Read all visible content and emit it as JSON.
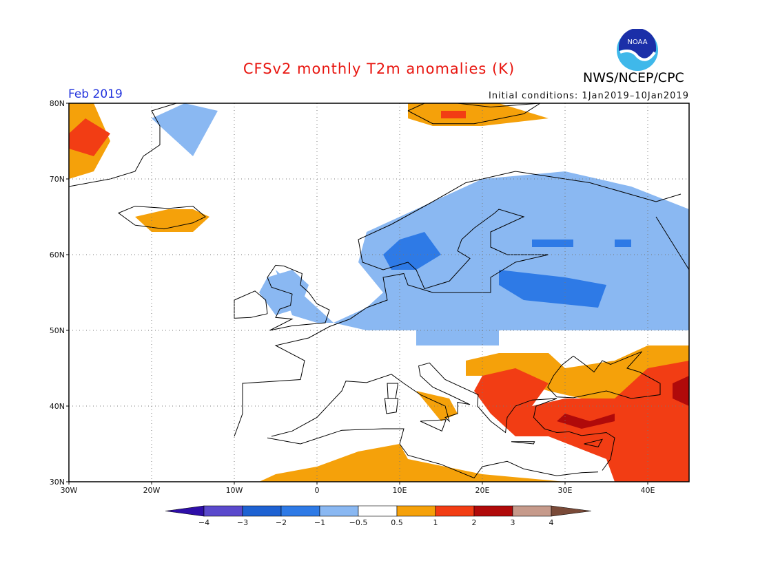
{
  "header": {
    "title": "CFSv2 monthly T2m anomalies (K)",
    "agency": "NWS/NCEP/CPC",
    "logo_text": "NOAA",
    "period": "Feb 2019",
    "initial_conditions": "Initial conditions: 1Jan2019–10Jan2019"
  },
  "map": {
    "lon_range": [
      -30,
      45
    ],
    "lat_range": [
      30,
      80
    ],
    "lon_labels": [
      {
        "lon": -30,
        "label": "30W"
      },
      {
        "lon": -20,
        "label": "20W"
      },
      {
        "lon": -10,
        "label": "10W"
      },
      {
        "lon": 0,
        "label": "0"
      },
      {
        "lon": 10,
        "label": "10E"
      },
      {
        "lon": 20,
        "label": "20E"
      },
      {
        "lon": 30,
        "label": "30E"
      },
      {
        "lon": 40,
        "label": "40E"
      }
    ],
    "lat_labels": [
      {
        "lat": 80,
        "label": "80N"
      },
      {
        "lat": 70,
        "label": "70N"
      },
      {
        "lat": 60,
        "label": "60N"
      },
      {
        "lat": 50,
        "label": "50N"
      },
      {
        "lat": 40,
        "label": "40N"
      },
      {
        "lat": 30,
        "label": "30N"
      }
    ],
    "grid": true,
    "anomaly_regions": [
      {
        "level": "minus_1_to_minus_0_5",
        "points": [
          [
            -5,
            58
          ],
          [
            -3,
            52
          ],
          [
            0,
            51
          ],
          [
            2,
            51
          ],
          [
            6,
            50
          ],
          [
            10,
            50
          ],
          [
            20,
            50
          ],
          [
            30,
            50
          ],
          [
            40,
            50
          ],
          [
            45,
            50
          ],
          [
            45,
            66
          ],
          [
            38,
            69
          ],
          [
            30,
            71
          ],
          [
            20,
            70
          ],
          [
            12,
            66
          ],
          [
            6,
            63
          ],
          [
            5,
            59
          ],
          [
            8,
            55
          ],
          [
            6,
            53
          ],
          [
            2,
            51
          ]
        ]
      },
      {
        "level": "minus_1_to_minus_0_5",
        "points": [
          [
            -6,
            57
          ],
          [
            -3,
            58
          ],
          [
            -1,
            56
          ],
          [
            -2,
            53
          ],
          [
            -5,
            52
          ],
          [
            -7,
            55
          ]
        ]
      },
      {
        "level": "minus_1_to_minus_0_5",
        "points": [
          [
            -20,
            78
          ],
          [
            -16,
            80
          ],
          [
            -12,
            79
          ],
          [
            -15,
            73
          ]
        ]
      },
      {
        "level": "minus_1_to_minus_0_5",
        "points": [
          [
            12,
            48
          ],
          [
            22,
            48
          ],
          [
            22,
            50
          ],
          [
            12,
            50
          ]
        ]
      },
      {
        "level": "minus_2_to_minus_1",
        "points": [
          [
            8,
            60
          ],
          [
            10,
            62
          ],
          [
            13,
            63
          ],
          [
            15,
            60
          ],
          [
            12,
            58
          ],
          [
            9,
            58
          ]
        ]
      },
      {
        "level": "minus_2_to_minus_1",
        "points": [
          [
            22,
            58
          ],
          [
            30,
            57
          ],
          [
            35,
            56
          ],
          [
            34,
            53
          ],
          [
            25,
            54
          ],
          [
            22,
            56
          ]
        ]
      },
      {
        "level": "minus_2_to_minus_1",
        "points": [
          [
            26,
            61
          ],
          [
            31,
            61
          ],
          [
            31,
            62
          ],
          [
            26,
            62
          ]
        ]
      },
      {
        "level": "minus_2_to_minus_1",
        "points": [
          [
            36,
            61
          ],
          [
            38,
            61
          ],
          [
            38,
            62
          ],
          [
            36,
            62
          ]
        ]
      },
      {
        "level": "plus_0_5_to_1",
        "points": [
          [
            -30,
            80
          ],
          [
            -27,
            80
          ],
          [
            -25,
            75
          ],
          [
            -27,
            71
          ],
          [
            -30,
            70
          ]
        ]
      },
      {
        "level": "plus_0_5_to_1",
        "points": [
          [
            -22,
            65
          ],
          [
            -18,
            66
          ],
          [
            -15,
            66
          ],
          [
            -13,
            65
          ],
          [
            -15,
            63
          ],
          [
            -20,
            63
          ]
        ]
      },
      {
        "level": "plus_0_5_to_1",
        "points": [
          [
            11,
            80
          ],
          [
            17,
            80
          ],
          [
            22,
            80
          ],
          [
            28,
            78
          ],
          [
            20,
            77
          ],
          [
            14,
            77
          ],
          [
            11,
            78
          ]
        ]
      },
      {
        "level": "plus_0_5_to_1",
        "points": [
          [
            -7,
            30
          ],
          [
            -5,
            31
          ],
          [
            0,
            32
          ],
          [
            5,
            34
          ],
          [
            10,
            35
          ],
          [
            11,
            33
          ],
          [
            20,
            31
          ],
          [
            30,
            30
          ]
        ]
      },
      {
        "level": "plus_0_5_to_1",
        "points": [
          [
            12,
            42
          ],
          [
            16,
            41
          ],
          [
            17,
            39
          ],
          [
            15,
            38
          ]
        ]
      },
      {
        "level": "plus_0_5_to_1",
        "points": [
          [
            18,
            46
          ],
          [
            22,
            47
          ],
          [
            28,
            47
          ],
          [
            30,
            45
          ],
          [
            36,
            46
          ],
          [
            40,
            48
          ],
          [
            45,
            48
          ],
          [
            45,
            36
          ],
          [
            38,
            37
          ],
          [
            32,
            41
          ],
          [
            28,
            42
          ],
          [
            22,
            44
          ],
          [
            18,
            44
          ]
        ]
      },
      {
        "level": "plus_1_to_2",
        "points": [
          [
            20,
            44
          ],
          [
            24,
            45
          ],
          [
            28,
            43
          ],
          [
            26,
            40
          ],
          [
            30,
            41
          ],
          [
            36,
            41
          ],
          [
            40,
            45
          ],
          [
            45,
            46
          ],
          [
            45,
            30
          ],
          [
            36,
            30
          ],
          [
            35,
            33
          ],
          [
            28,
            36
          ],
          [
            24,
            36
          ],
          [
            21,
            39
          ],
          [
            19,
            42
          ]
        ]
      },
      {
        "level": "plus_1_to_2",
        "points": [
          [
            -30,
            76
          ],
          [
            -28,
            78
          ],
          [
            -25,
            76
          ],
          [
            -27,
            73
          ],
          [
            -30,
            74
          ]
        ]
      },
      {
        "level": "plus_1_to_2",
        "points": [
          [
            15,
            79
          ],
          [
            18,
            79
          ],
          [
            18,
            78
          ],
          [
            15,
            78
          ]
        ]
      },
      {
        "level": "plus_2_to_3",
        "points": [
          [
            30,
            39
          ],
          [
            33,
            38
          ],
          [
            36,
            39
          ],
          [
            36,
            38
          ],
          [
            32,
            37
          ],
          [
            29,
            38
          ]
        ]
      },
      {
        "level": "plus_2_to_3",
        "points": [
          [
            43,
            43
          ],
          [
            45,
            44
          ],
          [
            45,
            40
          ],
          [
            43,
            41
          ]
        ]
      }
    ]
  },
  "legend": {
    "colors": {
      "below_minus_4": "#2e0ea8",
      "minus_4_to_minus_3": "#5a49cc",
      "minus_3_to_minus_2": "#1e62d2",
      "minus_2_to_minus_1": "#2e7ae6",
      "minus_1_to_minus_0_5": "#8ab8f2",
      "neutral": "#ffffff",
      "plus_0_5_to_1": "#f5a10a",
      "plus_1_to_2": "#f23d14",
      "plus_2_to_3": "#b00a0a",
      "plus_3_to_4": "#c69a8b",
      "above_4": "#7a4a38"
    },
    "tick_labels": [
      "−4",
      "−3",
      "−2",
      "−1",
      "−0.5",
      "0.5",
      "1",
      "2",
      "3",
      "4"
    ]
  }
}
